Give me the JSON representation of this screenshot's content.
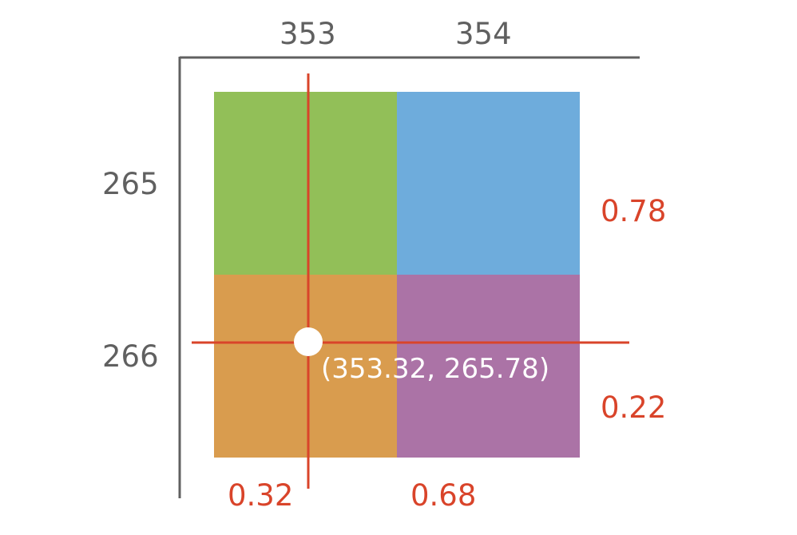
{
  "diagram": {
    "column_labels": [
      "353",
      "354"
    ],
    "row_labels": [
      "265",
      "266"
    ],
    "weights_x": [
      "0.32",
      "0.68"
    ],
    "weights_y": [
      "0.78",
      "0.22"
    ],
    "sample_point_label": "(353.32, 265.78)",
    "cells": [
      {
        "color": "#92bf58"
      },
      {
        "color": "#6eacdc"
      },
      {
        "color": "#d99c4e"
      },
      {
        "color": "#ab73a6"
      }
    ],
    "colors": {
      "axis": "#606060",
      "crosshair": "#d9442a",
      "fraction_text": "#d9442a",
      "point_marker": "#ffffff"
    }
  }
}
